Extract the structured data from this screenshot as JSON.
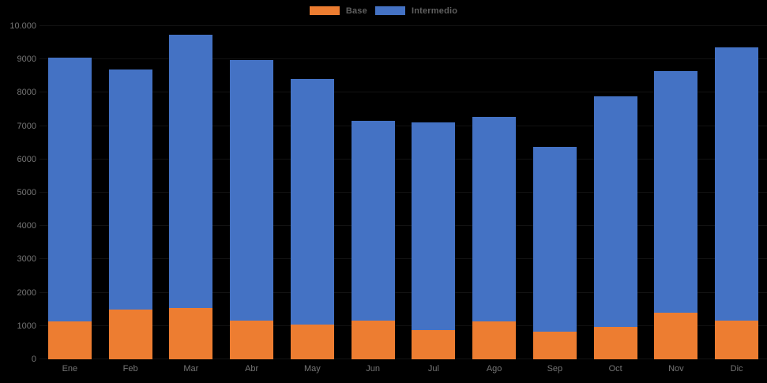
{
  "chart": {
    "background": "#000000",
    "title": "",
    "legend": {
      "position": "top-center",
      "items": [
        {
          "label": "Base",
          "color": "#ED7D31"
        },
        {
          "label": "Intermedio",
          "color": "#4472C4"
        }
      ]
    },
    "y_axis": {
      "min": 0,
      "max": 10000,
      "step": 1000,
      "tick_labels_top_to_bottom": [
        "10.000",
        "9000",
        "8000",
        "7000",
        "6000",
        "5000",
        "4000",
        "3000",
        "2000",
        "1000",
        "0"
      ]
    },
    "x_axis": {
      "categories": [
        "Ene",
        "Feb",
        "Mar",
        "Abr",
        "May",
        "Jun",
        "Jul",
        "Ago",
        "Sep",
        "Oct",
        "Nov",
        "Dic"
      ]
    }
  },
  "chart_data": {
    "type": "bar",
    "stacked": true,
    "title": "",
    "xlabel": "",
    "ylabel": "",
    "ylim": [
      0,
      10000
    ],
    "grid": "horizontal-faint",
    "legend_position": "top-center",
    "categories": [
      "Ene",
      "Feb",
      "Mar",
      "Abr",
      "May",
      "Jun",
      "Jul",
      "Ago",
      "Sep",
      "Oct",
      "Nov",
      "Dic"
    ],
    "series": [
      {
        "name": "Base",
        "color": "#ED7D31",
        "values": [
          1130,
          1500,
          1530,
          1160,
          1050,
          1170,
          870,
          1130,
          820,
          980,
          1400,
          1160
        ]
      },
      {
        "name": "Intermedio",
        "color": "#4472C4",
        "values": [
          7930,
          7190,
          8210,
          7820,
          7370,
          5990,
          6230,
          6140,
          5550,
          6900,
          7260,
          8190
        ]
      }
    ],
    "totals": [
      9060,
      8690,
      9740,
      8980,
      8420,
      7160,
      7100,
      7270,
      6370,
      7880,
      8660,
      9350
    ]
  }
}
